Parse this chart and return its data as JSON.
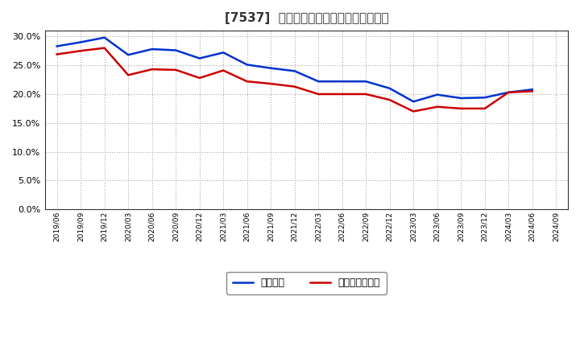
{
  "title": "[7537]  固定比率、固定長期適合率の推移",
  "blue_label": "固定比率",
  "red_label": "固定長期適合率",
  "blue_color": "#0033CC",
  "red_color": "#CC0000",
  "background_color": "#FFFFFF",
  "plot_bg_color": "#FFFFFF",
  "grid_color": "#AAAAAA",
  "ylim": [
    0.0,
    0.31
  ],
  "yticks": [
    0.0,
    0.05,
    0.1,
    0.15,
    0.2,
    0.25,
    0.3
  ],
  "dates": [
    "2019/06",
    "2019/09",
    "2019/12",
    "2020/03",
    "2020/06",
    "2020/09",
    "2020/12",
    "2021/03",
    "2021/06",
    "2021/09",
    "2021/12",
    "2022/03",
    "2022/06",
    "2022/09",
    "2022/12",
    "2023/03",
    "2023/06",
    "2023/09",
    "2023/12",
    "2024/03",
    "2024/06",
    "2024/09"
  ],
  "blue_values": [
    0.283,
    0.29,
    0.298,
    0.268,
    0.278,
    0.276,
    0.262,
    0.272,
    0.251,
    0.245,
    0.24,
    0.222,
    0.222,
    0.222,
    0.21,
    0.187,
    0.199,
    0.193,
    0.194,
    0.203,
    0.208,
    null
  ],
  "red_values": [
    0.269,
    0.275,
    0.28,
    0.233,
    0.243,
    0.242,
    0.228,
    0.241,
    0.222,
    0.218,
    0.213,
    0.2,
    0.2,
    0.2,
    0.19,
    0.17,
    0.178,
    0.175,
    0.175,
    0.203,
    0.205,
    null
  ]
}
